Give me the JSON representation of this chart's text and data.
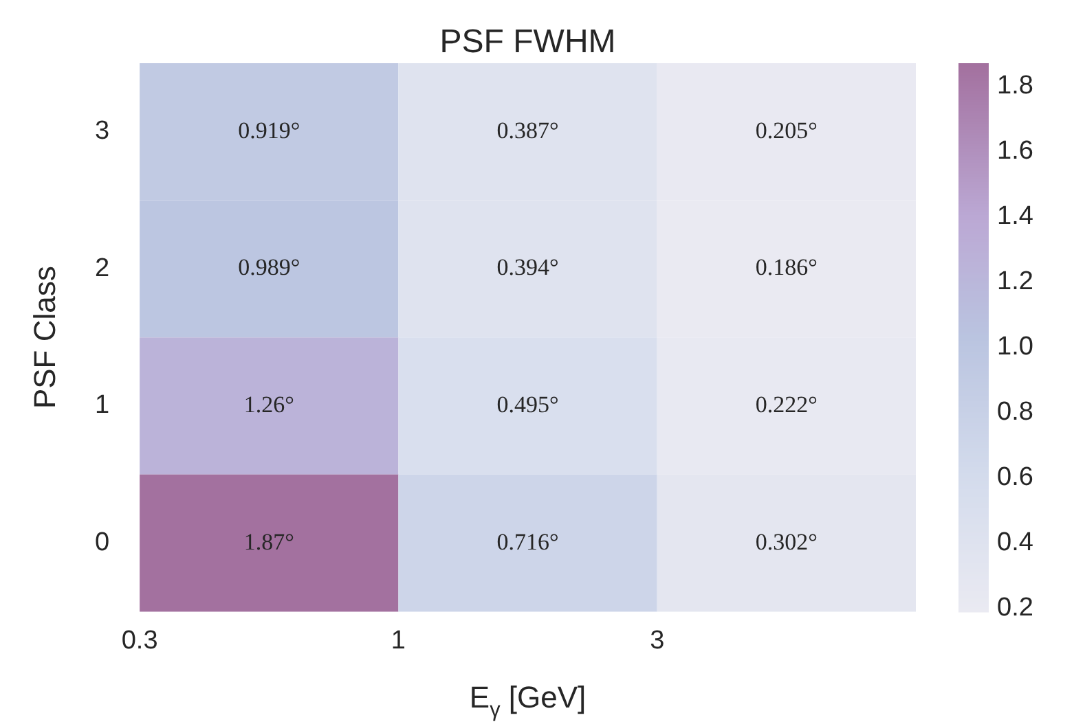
{
  "chart_data": {
    "type": "heatmap",
    "title": "PSF FWHM",
    "xlabel": "E$_{γ}$ [GeV]",
    "ylabel": "PSF Class",
    "categories": [
      null,
      null,
      null
    ],
    "annotations": [
      "0.3",
      "1",
      "3"
    ],
    "y_categories": [
      "3",
      "2",
      "1",
      "0"
    ],
    "cells": [
      [
        0.919,
        0.387,
        0.205
      ],
      [
        0.989,
        0.394,
        0.186
      ],
      [
        1.26,
        0.495,
        0.222
      ],
      [
        1.87,
        0.716,
        0.302
      ]
    ],
    "cell_labels": [
      [
        "0.919°",
        "0.387°",
        "0.205°"
      ],
      [
        "0.989°",
        "0.394°",
        "0.186°"
      ],
      [
        "1.26°",
        "0.495°",
        "0.222°"
      ],
      [
        "1.87°",
        "0.716°",
        "0.302°"
      ]
    ],
    "clim": [
      0.19,
      1.87
    ],
    "cticks": [
      0.2,
      0.4,
      0.6,
      0.8,
      {
        "value": 1,
        "label": "1.0"
      },
      1.2,
      1.4,
      1.6,
      1.8
    ]
  }
}
